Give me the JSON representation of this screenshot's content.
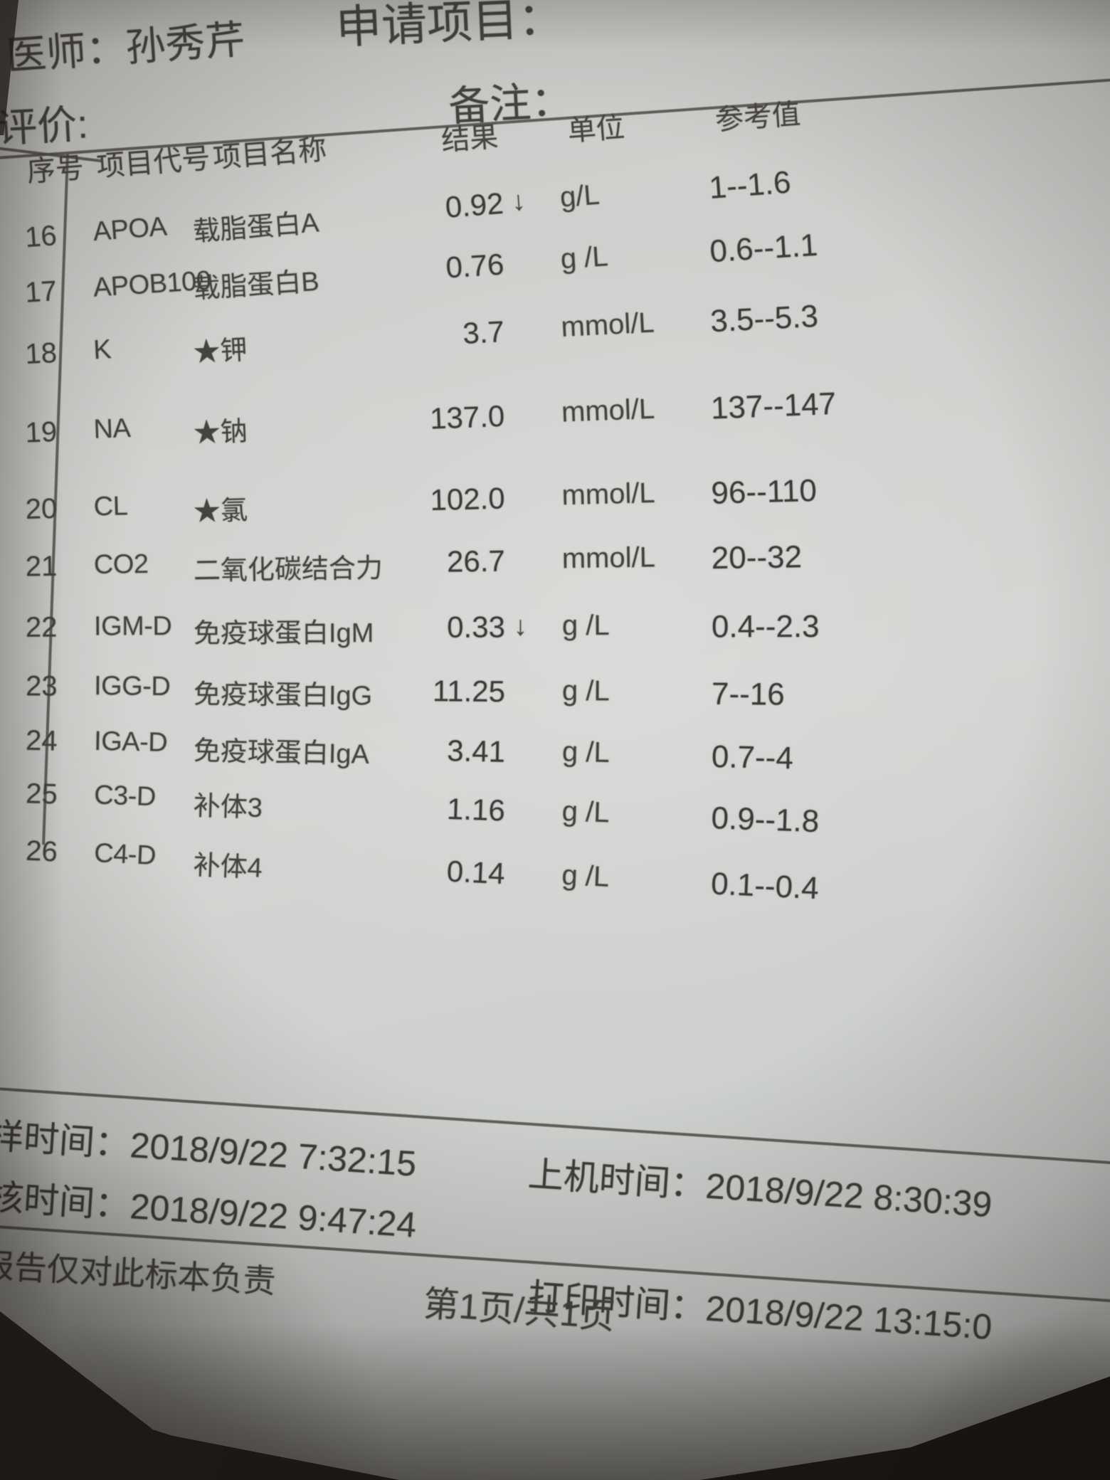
{
  "colors": {
    "ink": "#454340",
    "paper": "#d0d2cf",
    "background": "#211b18"
  },
  "header": {
    "physician_line": "医师：孙秀芹",
    "evaluation_label": "评价:",
    "request_items_label": "申请项目：",
    "remarks_label": "备注："
  },
  "table": {
    "headers": {
      "no": "序号",
      "code": "项目代号",
      "name": "项目名称",
      "result": "结果",
      "unit": "单位",
      "reference": "参考值"
    },
    "rows": [
      {
        "no": "16",
        "code": "APOA",
        "name": "载脂蛋白A",
        "result": "0.92",
        "flag": "↓",
        "unit": "g/L",
        "reference": "1--1.6"
      },
      {
        "no": "17",
        "code": "APOB100",
        "name": "载脂蛋白B",
        "result": "0.76",
        "flag": "",
        "unit": "g /L",
        "reference": "0.6--1.1"
      },
      {
        "no": "18",
        "code": "K",
        "name": "★钾",
        "result": "3.7",
        "flag": "",
        "unit": "mmol/L",
        "reference": "3.5--5.3"
      },
      {
        "no": "19",
        "code": "NA",
        "name": "★钠",
        "result": "137.0",
        "flag": "",
        "unit": "mmol/L",
        "reference": "137--147"
      },
      {
        "no": "20",
        "code": "CL",
        "name": "★氯",
        "result": "102.0",
        "flag": "",
        "unit": "mmol/L",
        "reference": "96--110"
      },
      {
        "no": "21",
        "code": "CO2",
        "name": "二氧化碳结合力",
        "result": "26.7",
        "flag": "",
        "unit": "mmol/L",
        "reference": "20--32"
      },
      {
        "no": "22",
        "code": "IGM-D",
        "name": "免疫球蛋白IgM",
        "result": "0.33",
        "flag": "↓",
        "unit": "g /L",
        "reference": "0.4--2.3"
      },
      {
        "no": "23",
        "code": "IGG-D",
        "name": "免疫球蛋白IgG",
        "result": "11.25",
        "flag": "",
        "unit": "g /L",
        "reference": "7--16"
      },
      {
        "no": "24",
        "code": "IGA-D",
        "name": "免疫球蛋白IgA",
        "result": "3.41",
        "flag": "",
        "unit": "g /L",
        "reference": "0.7--4"
      },
      {
        "no": "25",
        "code": "C3-D",
        "name": "补体3",
        "result": "1.16",
        "flag": "",
        "unit": "g /L",
        "reference": "0.9--1.8"
      },
      {
        "no": "26",
        "code": "C4-D",
        "name": "补体4",
        "result": "0.14",
        "flag": "",
        "unit": "g /L",
        "reference": "0.1--0.4"
      }
    ]
  },
  "footer": {
    "sample_time_label": "样时间：",
    "sample_time": "2018/9/22 7:32:15",
    "machine_time_label": "上机时间：",
    "machine_time": "2018/9/22 8:30:39",
    "review_time_label": "核时间：",
    "review_time": "2018/9/22 9:47:24",
    "print_time_label": "打印时间：",
    "print_time": "2018/9/22 13:15:0",
    "disclaimer": "报告仅对此标本负责",
    "page_indicator": "第1页/共1页"
  }
}
